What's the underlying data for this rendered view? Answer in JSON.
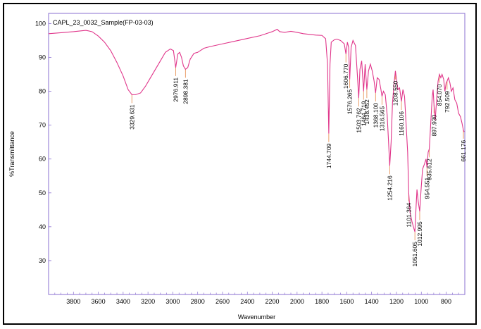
{
  "chart_data": {
    "type": "line",
    "title": "CAPL_23_0032_Sample(FP-03-03)",
    "xlabel": "Wavenumber",
    "ylabel": "%Transmittance",
    "xlim": [
      4000,
      650
    ],
    "ylim": [
      20,
      103
    ],
    "x_ticks": [
      3800,
      3600,
      3400,
      3200,
      3000,
      2800,
      2600,
      2400,
      2200,
      2000,
      1800,
      1600,
      1400,
      1200,
      1000,
      800
    ],
    "y_ticks": [
      30,
      40,
      50,
      60,
      70,
      80,
      90,
      100
    ],
    "series": [
      {
        "color": "#e0358a",
        "points": [
          [
            4000,
            97.0
          ],
          [
            3900,
            97.3
          ],
          [
            3800,
            97.6
          ],
          [
            3700,
            98.0
          ],
          [
            3650,
            97.6
          ],
          [
            3600,
            96.3
          ],
          [
            3550,
            94.5
          ],
          [
            3500,
            92.0
          ],
          [
            3450,
            88.5
          ],
          [
            3400,
            84.5
          ],
          [
            3360,
            80.5
          ],
          [
            3329.631,
            79.0
          ],
          [
            3300,
            79.0
          ],
          [
            3260,
            79.5
          ],
          [
            3220,
            81.5
          ],
          [
            3180,
            84.0
          ],
          [
            3140,
            86.5
          ],
          [
            3100,
            89.0
          ],
          [
            3060,
            91.5
          ],
          [
            3020,
            92.5
          ],
          [
            2995,
            92.0
          ],
          [
            2976.911,
            87.0
          ],
          [
            2960,
            91.0
          ],
          [
            2945,
            91.5
          ],
          [
            2930,
            90.0
          ],
          [
            2915,
            87.5
          ],
          [
            2898.381,
            86.5
          ],
          [
            2880,
            87.0
          ],
          [
            2860,
            89.5
          ],
          [
            2830,
            91.2
          ],
          [
            2800,
            91.5
          ],
          [
            2750,
            92.7
          ],
          [
            2700,
            93.2
          ],
          [
            2600,
            94.0
          ],
          [
            2500,
            94.8
          ],
          [
            2400,
            95.6
          ],
          [
            2300,
            96.4
          ],
          [
            2250,
            97.0
          ],
          [
            2200,
            97.6
          ],
          [
            2160,
            98.3
          ],
          [
            2140,
            97.6
          ],
          [
            2100,
            97.4
          ],
          [
            2050,
            97.7
          ],
          [
            2000,
            97.4
          ],
          [
            1950,
            97.0
          ],
          [
            1900,
            96.8
          ],
          [
            1850,
            96.6
          ],
          [
            1800,
            96.5
          ],
          [
            1770,
            95.5
          ],
          [
            1755,
            88.0
          ],
          [
            1744.709,
            67.5
          ],
          [
            1735,
            88.0
          ],
          [
            1725,
            94.5
          ],
          [
            1700,
            95.2
          ],
          [
            1680,
            95.4
          ],
          [
            1650,
            95.0
          ],
          [
            1620,
            94.0
          ],
          [
            1606.77,
            91.0
          ],
          [
            1595,
            94.5
          ],
          [
            1585,
            93.0
          ],
          [
            1576.265,
            83.5
          ],
          [
            1565,
            93.0
          ],
          [
            1550,
            95.0
          ],
          [
            1530,
            93.5
          ],
          [
            1515,
            85.0
          ],
          [
            1503.762,
            78.0
          ],
          [
            1494,
            86.5
          ],
          [
            1480,
            89.0
          ],
          [
            1464.719,
            80.0
          ],
          [
            1452,
            88.0
          ],
          [
            1438.452,
            80.5
          ],
          [
            1425,
            86.0
          ],
          [
            1410,
            88.0
          ],
          [
            1395,
            86.0
          ],
          [
            1380,
            83.0
          ],
          [
            1368.1,
            79.5
          ],
          [
            1355,
            84.0
          ],
          [
            1340,
            83.5
          ],
          [
            1325,
            80.5
          ],
          [
            1316.565,
            78.5
          ],
          [
            1305,
            80.0
          ],
          [
            1290,
            79.0
          ],
          [
            1275,
            73.0
          ],
          [
            1265,
            66.0
          ],
          [
            1254.216,
            58.0
          ],
          [
            1243,
            65.0
          ],
          [
            1232,
            76.5
          ],
          [
            1220,
            82.0
          ],
          [
            1208.55,
            86.0
          ],
          [
            1198,
            83.0
          ],
          [
            1188,
            80.5
          ],
          [
            1175,
            81.0
          ],
          [
            1160.106,
            77.0
          ],
          [
            1148,
            80.5
          ],
          [
            1135,
            78.5
          ],
          [
            1122,
            70.0
          ],
          [
            1110,
            62.0
          ],
          [
            1101.364,
            50.0
          ],
          [
            1090,
            44.0
          ],
          [
            1075,
            41.5
          ],
          [
            1060,
            39.5
          ],
          [
            1051.605,
            38.5
          ],
          [
            1042,
            46.0
          ],
          [
            1035,
            51.0
          ],
          [
            1025,
            47.5
          ],
          [
            1012.995,
            44.5
          ],
          [
            1002,
            51.0
          ],
          [
            990,
            57.0
          ],
          [
            975,
            58.5
          ],
          [
            962,
            60.0
          ],
          [
            954.551,
            57.5
          ],
          [
            945,
            62.0
          ],
          [
            935.612,
            63.0
          ],
          [
            922,
            72.0
          ],
          [
            912,
            78.5
          ],
          [
            905,
            80.5
          ],
          [
            897.93,
            76.0
          ],
          [
            888,
            71.5
          ],
          [
            875,
            78.5
          ],
          [
            865,
            83.0
          ],
          [
            854.07,
            85.0
          ],
          [
            843,
            84.0
          ],
          [
            833,
            85.0
          ],
          [
            820,
            83.5
          ],
          [
            810,
            80.0
          ],
          [
            800,
            82.5
          ],
          [
            792.509,
            83.0
          ],
          [
            782,
            84.0
          ],
          [
            770,
            82.5
          ],
          [
            758,
            80.0
          ],
          [
            745,
            81.0
          ],
          [
            730,
            77.5
          ],
          [
            715,
            76.5
          ],
          [
            700,
            73.5
          ],
          [
            685,
            72.5
          ],
          [
            672,
            70.5
          ],
          [
            661.176,
            68.5
          ],
          [
            655,
            68.0
          ]
        ]
      }
    ],
    "peaks": [
      {
        "x": 3329.631,
        "label": "3329.631",
        "y": 79.0
      },
      {
        "x": 2976.911,
        "label": "2976.911",
        "y": 87.0
      },
      {
        "x": 2898.381,
        "label": "2898.381",
        "y": 86.5
      },
      {
        "x": 1744.709,
        "label": "1744.709",
        "y": 67.5
      },
      {
        "x": 1606.77,
        "label": "1606.770",
        "y": 91.0
      },
      {
        "x": 1576.265,
        "label": "1576.265",
        "y": 83.5
      },
      {
        "x": 1503.762,
        "label": "1503.762",
        "y": 78.0
      },
      {
        "x": 1464.719,
        "label": "1464.719",
        "y": 80.0
      },
      {
        "x": 1438.452,
        "label": "1438.452",
        "y": 80.5
      },
      {
        "x": 1368.1,
        "label": "1368.100",
        "y": 79.5
      },
      {
        "x": 1316.565,
        "label": "1316.565",
        "y": 78.5
      },
      {
        "x": 1254.216,
        "label": "1254.216",
        "y": 58.0
      },
      {
        "x": 1208.55,
        "label": "1208.550",
        "y": 86.0
      },
      {
        "x": 1160.106,
        "label": "1160.106",
        "y": 77.0
      },
      {
        "x": 1101.364,
        "label": "1101.364",
        "y": 50.0
      },
      {
        "x": 1051.605,
        "label": "1051.605",
        "y": 38.5
      },
      {
        "x": 1012.995,
        "label": "1012.995",
        "y": 44.5
      },
      {
        "x": 954.551,
        "label": "954.551",
        "y": 57.5
      },
      {
        "x": 935.612,
        "label": "935.612",
        "y": 63.0
      },
      {
        "x": 897.93,
        "label": "897.930",
        "y": 76.0
      },
      {
        "x": 854.07,
        "label": "854.070",
        "y": 85.0
      },
      {
        "x": 792.509,
        "label": "792.509",
        "y": 83.0
      },
      {
        "x": 661.176,
        "label": "661.176",
        "y": 68.5
      }
    ],
    "grid": false,
    "frame_color": "#8a6fd1",
    "line_color": "#e0358a",
    "peak_marker_color": "#e8955a"
  }
}
